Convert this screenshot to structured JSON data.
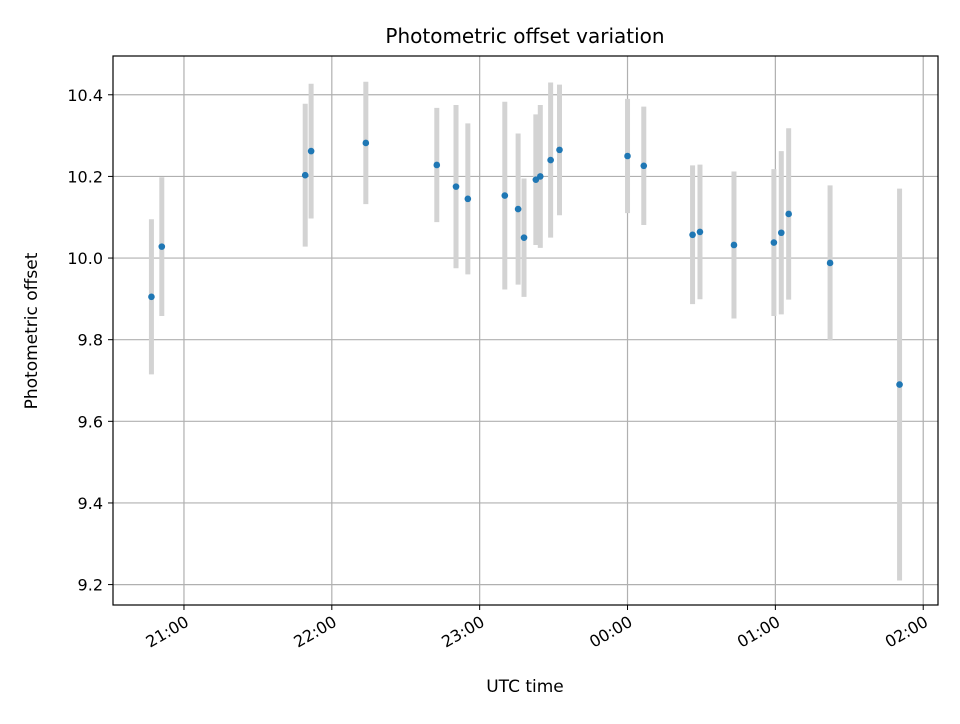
{
  "chart_data": {
    "type": "scatter",
    "title": "Photometric offset variation",
    "xlabel": "UTC time",
    "ylabel": "Photometric offset",
    "x_tick_labels": [
      "21:00",
      "22:00",
      "23:00",
      "00:00",
      "01:00",
      "02:00"
    ],
    "x_tick_hours": [
      21,
      22,
      23,
      24,
      25,
      26
    ],
    "xlim_hours": [
      20.52,
      26.1
    ],
    "y_ticks": [
      9.2,
      9.4,
      9.6,
      9.8,
      10.0,
      10.2,
      10.4
    ],
    "y_tick_labels": [
      "9.2",
      "9.4",
      "9.6",
      "9.8",
      "10.0",
      "10.2",
      "10.4"
    ],
    "ylim": [
      9.15,
      10.495
    ],
    "grid": true,
    "marker_color": "#1f77b4",
    "errorbar_color": "#d3d3d3",
    "points": [
      {
        "t": 20.78,
        "y": 9.905,
        "err": 0.19
      },
      {
        "t": 20.85,
        "y": 10.028,
        "err": 0.17
      },
      {
        "t": 21.82,
        "y": 10.203,
        "err": 0.175
      },
      {
        "t": 21.86,
        "y": 10.262,
        "err": 0.165
      },
      {
        "t": 22.23,
        "y": 10.282,
        "err": 0.15
      },
      {
        "t": 22.71,
        "y": 10.228,
        "err": 0.14
      },
      {
        "t": 22.84,
        "y": 10.175,
        "err": 0.2
      },
      {
        "t": 22.92,
        "y": 10.145,
        "err": 0.185
      },
      {
        "t": 23.17,
        "y": 10.153,
        "err": 0.23
      },
      {
        "t": 23.26,
        "y": 10.12,
        "err": 0.185
      },
      {
        "t": 23.3,
        "y": 10.05,
        "err": 0.145
      },
      {
        "t": 23.38,
        "y": 10.192,
        "err": 0.16
      },
      {
        "t": 23.41,
        "y": 10.2,
        "err": 0.175
      },
      {
        "t": 23.48,
        "y": 10.24,
        "err": 0.19
      },
      {
        "t": 23.54,
        "y": 10.265,
        "err": 0.16
      },
      {
        "t": 24.0,
        "y": 10.25,
        "err": 0.14
      },
      {
        "t": 24.11,
        "y": 10.226,
        "err": 0.145
      },
      {
        "t": 24.44,
        "y": 10.057,
        "err": 0.17
      },
      {
        "t": 24.49,
        "y": 10.064,
        "err": 0.165
      },
      {
        "t": 24.72,
        "y": 10.032,
        "err": 0.18
      },
      {
        "t": 24.99,
        "y": 10.038,
        "err": 0.18
      },
      {
        "t": 25.04,
        "y": 10.062,
        "err": 0.2
      },
      {
        "t": 25.09,
        "y": 10.108,
        "err": 0.21
      },
      {
        "t": 25.37,
        "y": 9.988,
        "err": 0.19
      },
      {
        "t": 25.84,
        "y": 9.69,
        "err": 0.48
      }
    ]
  }
}
